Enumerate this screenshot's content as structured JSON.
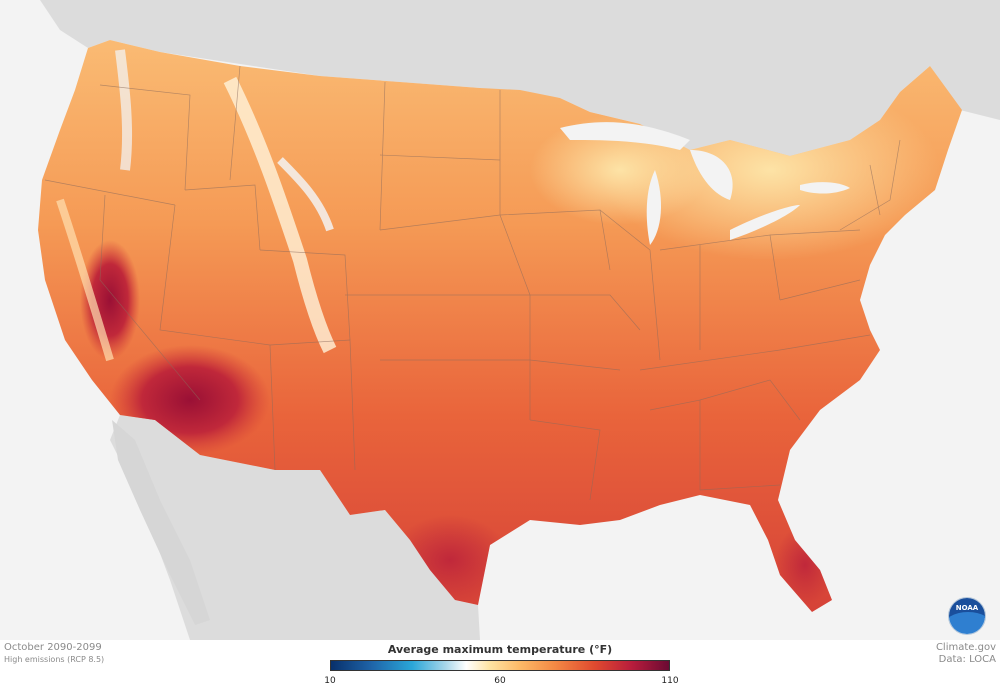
{
  "map": {
    "period": "October 2090-2099",
    "scenario": "High emissions (RCP 8.5)",
    "credit_source": "Climate.gov",
    "credit_data": "Data: LOCA",
    "logo_text": "NOAA",
    "legend": {
      "title": "Average maximum temperature (°F)",
      "min_label": "10",
      "mid_label": "60",
      "max_label": "110",
      "min": 10,
      "mid": 60,
      "max": 110
    },
    "colors": {
      "cold": "#08306b",
      "cool": "#2aa6d8",
      "neutral": "#ffffff",
      "warm": "#fdb967",
      "hot": "#e04a2f",
      "hottest": "#6b0a33",
      "land_background": "#dcdcdc",
      "water": "#f3f3f3"
    }
  }
}
